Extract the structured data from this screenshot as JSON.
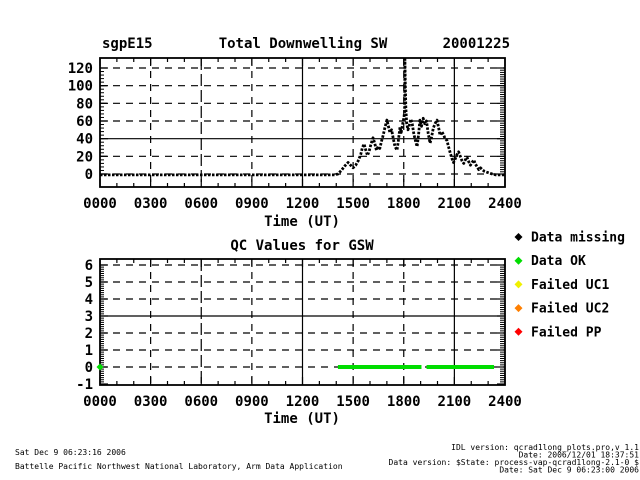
{
  "header": {
    "site": "sgpE15",
    "title": "Total Downwelling SW",
    "date": "20001225"
  },
  "legend": {
    "items": [
      {
        "name": "data-missing",
        "label": "Data missing",
        "color": "#000000"
      },
      {
        "name": "data-ok",
        "label": "Data OK",
        "color": "#00dd00"
      },
      {
        "name": "failed-uc1",
        "label": "Failed UC1",
        "color": "#f0f000"
      },
      {
        "name": "failed-uc2",
        "label": "Failed UC2",
        "color": "#ff7f00"
      },
      {
        "name": "failed-pp",
        "label": "Failed PP",
        "color": "#ff0000"
      }
    ]
  },
  "footer": {
    "left_line1": "Sat Dec  9 06:23:16 2006",
    "left_line2": "Battelle Pacific Northwest National Laboratory, Arm Data Application",
    "right_line1": "IDL version: qcrad1long_plots.pro,v 1.1",
    "right_line2": "Date: 2006/12/01 18:37:51",
    "right_line3": "Data version: $State: process-vap-qcrad1long-2.1-0 $",
    "right_line4": "Date: Sat Dec  9 06:23:00 2006"
  },
  "chart_data": [
    {
      "type": "line",
      "title": "Total Downwelling SW",
      "site": "sgpE15",
      "date": "20001225",
      "xlabel": "Time (UT)",
      "ylabel": "",
      "xlim": [
        0,
        24
      ],
      "ylim": [
        -15,
        131
      ],
      "x_ticks": [
        0,
        3,
        6,
        9,
        12,
        15,
        18,
        21,
        24
      ],
      "x_tick_labels": [
        "0000",
        "0300",
        "0600",
        "0900",
        "1200",
        "1500",
        "1800",
        "2100",
        "2400"
      ],
      "y_ticks": [
        0,
        20,
        40,
        60,
        80,
        100,
        120
      ],
      "grid": "dashed, solid horizontal line at 40, solid vertical lines at 1200 and 2100",
      "series": [
        {
          "name": "total_downwelling_sw",
          "color": "#000000",
          "style": "thick dotted",
          "points": [
            [
              0,
              -1
            ],
            [
              1.5,
              -1
            ],
            [
              3,
              -1
            ],
            [
              4.5,
              -1
            ],
            [
              6,
              -1
            ],
            [
              7.5,
              -1
            ],
            [
              9,
              -1
            ],
            [
              10.5,
              -1
            ],
            [
              12,
              -1
            ],
            [
              13,
              -1
            ],
            [
              13.6,
              -1
            ],
            [
              13.9,
              -1
            ],
            [
              14.1,
              0
            ],
            [
              14.3,
              4
            ],
            [
              14.5,
              9
            ],
            [
              14.7,
              13
            ],
            [
              14.85,
              10
            ],
            [
              15.0,
              7
            ],
            [
              15.15,
              10
            ],
            [
              15.3,
              15
            ],
            [
              15.45,
              22
            ],
            [
              15.55,
              30
            ],
            [
              15.65,
              34
            ],
            [
              15.75,
              27
            ],
            [
              15.85,
              21
            ],
            [
              15.95,
              26
            ],
            [
              16.05,
              33
            ],
            [
              16.18,
              41
            ],
            [
              16.28,
              35
            ],
            [
              16.38,
              27
            ],
            [
              16.48,
              31
            ],
            [
              16.58,
              29
            ],
            [
              16.68,
              37
            ],
            [
              16.78,
              44
            ],
            [
              16.88,
              52
            ],
            [
              17.0,
              61
            ],
            [
              17.08,
              55
            ],
            [
              17.18,
              47
            ],
            [
              17.28,
              50
            ],
            [
              17.38,
              40
            ],
            [
              17.48,
              31
            ],
            [
              17.6,
              27
            ],
            [
              17.68,
              38
            ],
            [
              17.78,
              53
            ],
            [
              17.85,
              47
            ],
            [
              17.92,
              55
            ],
            [
              18.0,
              63
            ],
            [
              18.05,
              70
            ],
            [
              18.07,
              130
            ],
            [
              18.09,
              101
            ],
            [
              18.12,
              76
            ],
            [
              18.17,
              58
            ],
            [
              18.25,
              50
            ],
            [
              18.33,
              55
            ],
            [
              18.42,
              62
            ],
            [
              18.5,
              57
            ],
            [
              18.6,
              45
            ],
            [
              18.7,
              37
            ],
            [
              18.79,
              31
            ],
            [
              18.88,
              45
            ],
            [
              18.96,
              61
            ],
            [
              19.05,
              54
            ],
            [
              19.15,
              63
            ],
            [
              19.25,
              57
            ],
            [
              19.35,
              60
            ],
            [
              19.45,
              46
            ],
            [
              19.56,
              35
            ],
            [
              19.65,
              42
            ],
            [
              19.75,
              52
            ],
            [
              19.85,
              57
            ],
            [
              19.97,
              61
            ],
            [
              20.07,
              52
            ],
            [
              20.15,
              44
            ],
            [
              20.25,
              48
            ],
            [
              20.35,
              45
            ],
            [
              20.45,
              40
            ],
            [
              20.56,
              38
            ],
            [
              20.65,
              31
            ],
            [
              20.75,
              24
            ],
            [
              20.85,
              18
            ],
            [
              20.95,
              13
            ],
            [
              21.05,
              17
            ],
            [
              21.15,
              22
            ],
            [
              21.25,
              25
            ],
            [
              21.35,
              20
            ],
            [
              21.45,
              15
            ],
            [
              21.55,
              12
            ],
            [
              21.65,
              16
            ],
            [
              21.75,
              19
            ],
            [
              21.85,
              14
            ],
            [
              21.95,
              10
            ],
            [
              22.05,
              13
            ],
            [
              22.15,
              16
            ],
            [
              22.25,
              11
            ],
            [
              22.35,
              8
            ],
            [
              22.45,
              5
            ],
            [
              22.55,
              7
            ],
            [
              22.65,
              5
            ],
            [
              22.78,
              3
            ],
            [
              22.92,
              2
            ],
            [
              23.08,
              1
            ],
            [
              23.25,
              0
            ],
            [
              23.45,
              -1
            ],
            [
              23.7,
              -1
            ],
            [
              24,
              -1
            ]
          ]
        }
      ]
    },
    {
      "type": "line",
      "title": "QC Values for GSW",
      "xlabel": "Time (UT)",
      "ylabel": "",
      "xlim": [
        0,
        24
      ],
      "ylim": [
        -1.1,
        6.35
      ],
      "x_ticks": [
        0,
        3,
        6,
        9,
        12,
        15,
        18,
        21,
        24
      ],
      "x_tick_labels": [
        "0000",
        "0300",
        "0600",
        "0900",
        "1200",
        "1500",
        "1800",
        "2100",
        "2400"
      ],
      "y_ticks": [
        -1,
        0,
        1,
        2,
        3,
        4,
        5,
        6
      ],
      "grid": "dashed, solid horizontal line at 3, solid vertical lines at 1200 and 2100",
      "series": [
        {
          "name": "qc_data_ok",
          "color": "#00dd00",
          "value": 0,
          "style": "thick solid",
          "segments": [
            [
              14.1,
              19.05
            ],
            [
              19.35,
              23.35
            ]
          ],
          "points": [
            [
              0,
              0
            ]
          ]
        }
      ]
    }
  ]
}
